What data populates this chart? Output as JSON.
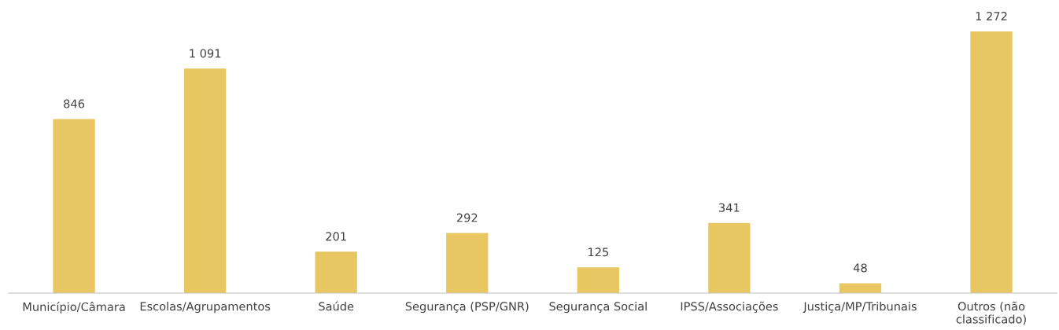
{
  "chart_data": {
    "type": "bar",
    "categories": [
      "Município/Câmara",
      "Escolas/Agrupamentos",
      "Saúde",
      "Segurança (PSP/GNR)",
      "Segurança Social",
      "IPSS/Associações",
      "Justiça/MP/Tribunais",
      "Outros (não\nclassificado)"
    ],
    "values": [
      846,
      1091,
      201,
      292,
      125,
      341,
      48,
      1272
    ],
    "value_labels": [
      "846",
      "1 091",
      "201",
      "292",
      "125",
      "341",
      "48",
      "1 272"
    ],
    "color": "#e8c763",
    "grid": false,
    "legend": false
  }
}
